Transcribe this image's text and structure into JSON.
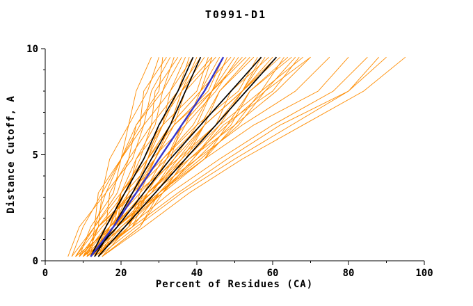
{
  "chart_data": {
    "type": "line",
    "title": "T0991-D1",
    "xlabel": "Percent of Residues (CA)",
    "ylabel": "Distance Cutoff, A",
    "xlim": [
      0,
      100
    ],
    "ylim": [
      0,
      10
    ],
    "x_ticks": [
      0,
      20,
      40,
      60,
      80,
      100
    ],
    "x_minor": [
      10,
      30,
      50,
      70,
      90
    ],
    "y_ticks": [
      0,
      5,
      10
    ],
    "y_minor": [
      1,
      2,
      3,
      4,
      6,
      7,
      8,
      9
    ],
    "legend": "none",
    "grid": false,
    "colors": {
      "models": "#ff8c00",
      "selected": "#000000",
      "best_model": "#3333cc",
      "axis": "#000000",
      "background": "#ffffff"
    },
    "y_samples": [
      0.2,
      1.6,
      3.2,
      4.8,
      6.4,
      8.0,
      9.6
    ],
    "series": {
      "models": [
        [
          8,
          13,
          14,
          20,
          22,
          27,
          30
        ],
        [
          9,
          12,
          18,
          20,
          26,
          28,
          33
        ],
        [
          10,
          16,
          17,
          22,
          28,
          29,
          35
        ],
        [
          11,
          14,
          21,
          25,
          28,
          35,
          38
        ],
        [
          12,
          18,
          20,
          27,
          30,
          36,
          40
        ],
        [
          13,
          17,
          24,
          27,
          33,
          36,
          42
        ],
        [
          9,
          17,
          20,
          27,
          34,
          37,
          45
        ],
        [
          10,
          14,
          23,
          29,
          34,
          43,
          47
        ],
        [
          11,
          19,
          23,
          32,
          36,
          44,
          50
        ],
        [
          12,
          18,
          26,
          31,
          40,
          44,
          52
        ],
        [
          13,
          22,
          26,
          34,
          42,
          46,
          55
        ],
        [
          14,
          19,
          29,
          36,
          42,
          52,
          57
        ],
        [
          8,
          18,
          24,
          35,
          42,
          52,
          60
        ],
        [
          9,
          17,
          28,
          35,
          45,
          52,
          62
        ],
        [
          10,
          21,
          27,
          38,
          48,
          54,
          65
        ],
        [
          11,
          18,
          31,
          39,
          47,
          60,
          67
        ],
        [
          12,
          23,
          30,
          42,
          50,
          61,
          70
        ],
        [
          7,
          10,
          15,
          17,
          22,
          24,
          28
        ],
        [
          8,
          14,
          15,
          20,
          25,
          26,
          32
        ],
        [
          14,
          17,
          25,
          29,
          33,
          41,
          44
        ],
        [
          15,
          22,
          25,
          33,
          36,
          44,
          48
        ],
        [
          13,
          16,
          22,
          24,
          29,
          31,
          36
        ],
        [
          12,
          19,
          20,
          26,
          31,
          33,
          39
        ],
        [
          11,
          14,
          23,
          27,
          31,
          40,
          43
        ],
        [
          10,
          17,
          21,
          29,
          33,
          41,
          46
        ],
        [
          9,
          15,
          23,
          28,
          37,
          41,
          49
        ],
        [
          8,
          18,
          22,
          31,
          39,
          44,
          53
        ],
        [
          12,
          17,
          28,
          34,
          40,
          51,
          56
        ],
        [
          13,
          22,
          27,
          37,
          42,
          52,
          58
        ],
        [
          14,
          21,
          31,
          37,
          46,
          52,
          61
        ],
        [
          15,
          25,
          30,
          40,
          49,
          54,
          64
        ],
        [
          6,
          9,
          16,
          20,
          24,
          31,
          34
        ],
        [
          7,
          13,
          16,
          23,
          26,
          33,
          37
        ],
        [
          8,
          13,
          20,
          24,
          31,
          35,
          41
        ],
        [
          9,
          17,
          20,
          27,
          33,
          36,
          44
        ],
        [
          10,
          14,
          24,
          29,
          34,
          44,
          48
        ],
        [
          11,
          19,
          23,
          32,
          37,
          45,
          51
        ],
        [
          12,
          18,
          27,
          32,
          41,
          46,
          54
        ],
        [
          13,
          23,
          27,
          36,
          45,
          49,
          59
        ],
        [
          14,
          20,
          31,
          39,
          46,
          57,
          63
        ],
        [
          15,
          25,
          31,
          42,
          48,
          58,
          66
        ],
        [
          10,
          19,
          30,
          38,
          50,
          57,
          68
        ],
        [
          11,
          23,
          30,
          41,
          51,
          58,
          70
        ],
        [
          12,
          13,
          19,
          22,
          24,
          30,
          31
        ],
        [
          12,
          20,
          30,
          42,
          55,
          72,
          80
        ],
        [
          13,
          22,
          33,
          46,
          60,
          76,
          85
        ],
        [
          14,
          24,
          36,
          50,
          65,
          80,
          90
        ],
        [
          15,
          26,
          38,
          52,
          68,
          84,
          95
        ],
        [
          12,
          23,
          35,
          48,
          62,
          80,
          88
        ],
        [
          11,
          19,
          28,
          40,
          52,
          66,
          75
        ]
      ],
      "selected": [
        [
          12,
          16,
          21,
          26,
          30,
          35,
          39
        ],
        [
          13,
          18,
          23,
          28,
          33,
          37,
          41
        ],
        [
          12,
          19,
          26,
          33,
          41,
          49,
          57
        ],
        [
          14,
          21,
          29,
          37,
          45,
          53,
          61
        ]
      ],
      "best": [
        [
          12,
          18,
          24,
          30,
          36,
          42,
          47
        ]
      ]
    }
  }
}
